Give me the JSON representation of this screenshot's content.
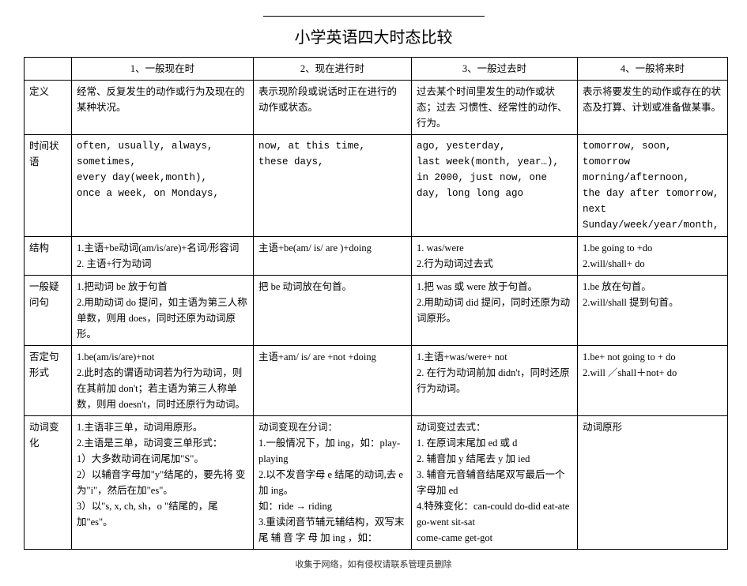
{
  "title": "小学英语四大时态比较",
  "footer": "收集于网络，如有侵权请联系管理员删除",
  "headers": {
    "blank": "",
    "c1": "1、一般现在时",
    "c2": "2、现在进行时",
    "c3": "3、一般过去时",
    "c4": "4、一般将来时"
  },
  "rows": {
    "definition": {
      "label": "定义",
      "c1": "经常、反复发生的动作或行为及现在的某种状况。",
      "c2": "表示现阶段或说话时正在进行的动作或状态。",
      "c3": "过去某个时间里发生的动作或状态；过去 习惯性、经常性的动作、行为。",
      "c4": "表示将要发生的动作或存在的状态及打算、计划或准备做某事。"
    },
    "time": {
      "label": "时间状语",
      "c1": "often, usually, always, sometimes,\n every day(week,month),\nonce a week,  on Mondays,",
      "c2": "now, at this time,\nthese days,",
      "c3": "ago, yesterday,\nlast week(month, year…), in 2000,  just now, one day,  long long ago",
      "c4": "tomorrow, soon,\ntomorrow morning/afternoon,\nthe day after tomorrow,\nnext Sunday/week/year/month,"
    },
    "structure": {
      "label": "结构",
      "c1": "1.主语+be动词(am/is/are)+名词/形容词\n2. 主语+行为动词",
      "c2": "主语+be(am/ is/ are )+doing",
      "c3": "1. was/were\n2.行为动词过去式",
      "c4": "1.be going to +do\n2.will/shall+ do"
    },
    "question": {
      "label": "一般疑问句",
      "c1": "1.把动词 be 放于句首\n2.用助动词 do 提问，如主语为第三人称单数，则用 does，同时还原为动词原形。",
      "c2": "把 be 动词放在句首。",
      "c3": "1.把 was 或 were 放于句首。\n2.用助动词 did 提问，同时还原为动词原形。",
      "c4": "1.be 放在句首。\n2.will/shall 提到句首。"
    },
    "negative": {
      "label": "否定句形式",
      "c1": "1.be(am/is/are)+not\n2.此时态的谓语动词若为行为动词，则在其前加 don't；若主语为第三人称单数，则用 doesn't，同时还原行为动词。",
      "c2": "主语+am/ is/ are +not +doing",
      "c3": "1.主语+was/were+ not\n2. 在行为动词前加 didn't，同时还原行为动词。",
      "c4": "1.be+ not going to + do\n2.will ／shall＋not+ do"
    },
    "verb": {
      "label": "动词变化",
      "c1": "1.主语非三单，动词用原形。\n2.主语是三单，动词变三单形式：\n1）大多数动词在词尾加\"S\"。\n2）以辅音字母加\"y\"结尾的，要先将 变为\"i\"，然后在加\"es\"。\n3）以\"s, x, ch, sh，o \"结尾的，尾加\"es\"。",
      "c2": "动词变现在分词：\n1.一般情况下，加 ing，如：play-playing\n2.以不发音字母 e 结尾的动词,去 e 加 ing。\n如：ride  →  riding\n3.重读闭音节辅元辅结构，双写末尾 辅 音 字 母 加  ing ，如：",
      "c3": "动词变过去式：\n1. 在原词末尾加 ed 或 d\n2. 辅音加 y 结尾去 y 加 ied\n3. 辅音元音辅音结尾双写最后一个字母加 ed\n4.特殊变化：can-could  do-did eat-ate go-went sit-sat\ncome-came     get-got",
      "c4": "动词原形"
    }
  }
}
